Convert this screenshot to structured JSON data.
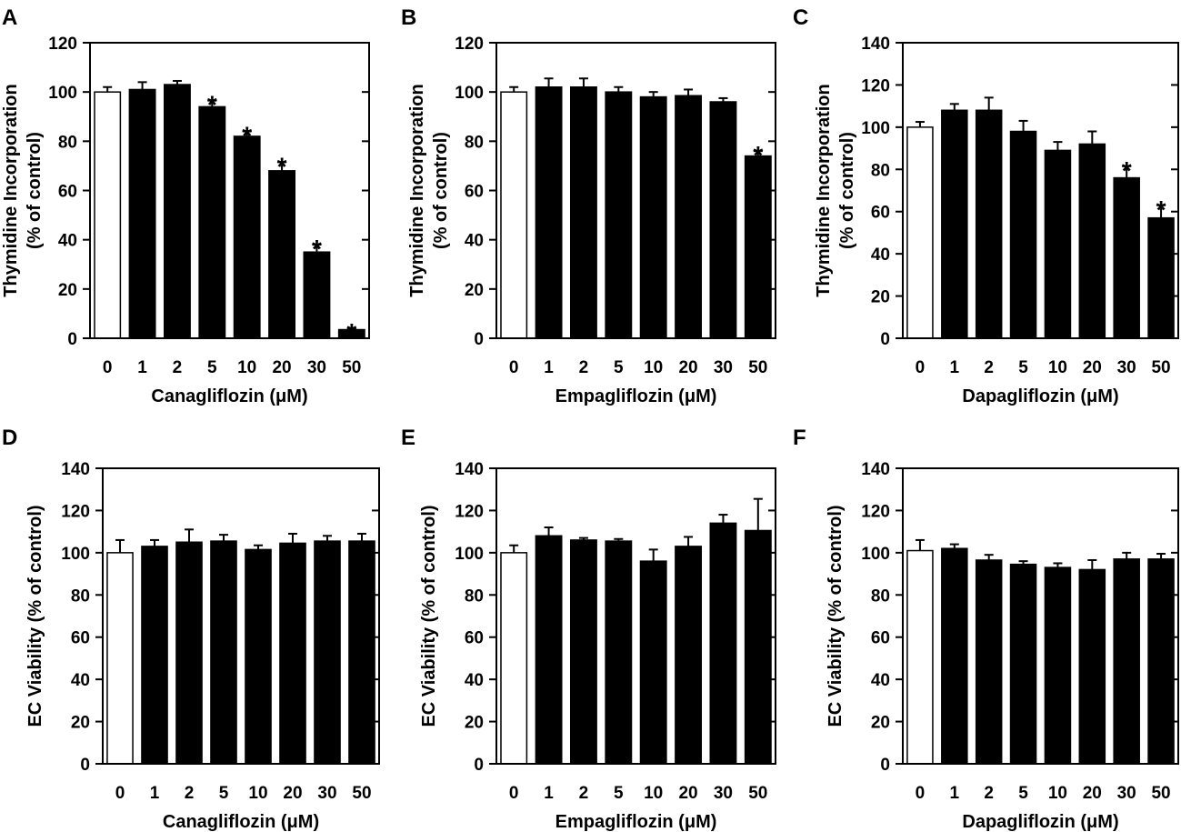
{
  "chart_data": [
    {
      "label": "A",
      "type": "bar",
      "categories": [
        "0",
        "1",
        "2",
        "5",
        "10",
        "20",
        "30",
        "50"
      ],
      "values": [
        100,
        101,
        103,
        94,
        82,
        68,
        35,
        3.5
      ],
      "errors": [
        2,
        3,
        1.5,
        2.5,
        2,
        3.5,
        3,
        0.5
      ],
      "significant": [
        false,
        false,
        false,
        true,
        true,
        true,
        true,
        true
      ],
      "control_fill": "#ffffff",
      "bar_fill": "#000000",
      "xlabel": "Canagliflozin (μM)",
      "ylabel_lines": [
        "Thymidine Incorporation",
        "(% of control)"
      ],
      "ylim": [
        0,
        120
      ],
      "ytick_step": 20,
      "sig_marker": "*"
    },
    {
      "label": "B",
      "type": "bar",
      "categories": [
        "0",
        "1",
        "2",
        "5",
        "10",
        "20",
        "30",
        "50"
      ],
      "values": [
        100,
        102,
        102,
        100,
        98,
        98.5,
        96,
        74
      ],
      "errors": [
        2,
        3.5,
        3.5,
        2,
        2,
        2.5,
        1.5,
        2
      ],
      "significant": [
        false,
        false,
        false,
        false,
        false,
        false,
        false,
        true
      ],
      "control_fill": "#ffffff",
      "bar_fill": "#000000",
      "xlabel": "Empagliflozin (μM)",
      "ylabel_lines": [
        "Thymidine Incorporation",
        "(% of control)"
      ],
      "ylim": [
        0,
        120
      ],
      "ytick_step": 20,
      "sig_marker": "*"
    },
    {
      "label": "C",
      "type": "bar",
      "categories": [
        "0",
        "1",
        "2",
        "5",
        "10",
        "20",
        "30",
        "50"
      ],
      "values": [
        100,
        108,
        108,
        98,
        89,
        92,
        76,
        57
      ],
      "errors": [
        2.5,
        3,
        6,
        5,
        4,
        6,
        5.5,
        6
      ],
      "significant": [
        false,
        false,
        false,
        false,
        false,
        false,
        true,
        true
      ],
      "control_fill": "#ffffff",
      "bar_fill": "#000000",
      "xlabel": "Dapagliflozin (μM)",
      "ylabel_lines": [
        "Thymidine Incorporation",
        "(% of control)"
      ],
      "ylim": [
        0,
        140
      ],
      "ytick_step": 20,
      "sig_marker": "*"
    },
    {
      "label": "D",
      "type": "bar",
      "categories": [
        "0",
        "1",
        "2",
        "5",
        "10",
        "20",
        "30",
        "50"
      ],
      "values": [
        100,
        103,
        105,
        105.5,
        101.5,
        104.5,
        105.5,
        105.5
      ],
      "errors": [
        6,
        3,
        6,
        3,
        2,
        4.5,
        2.5,
        3.5
      ],
      "significant": [
        false,
        false,
        false,
        false,
        false,
        false,
        false,
        false
      ],
      "control_fill": "#ffffff",
      "bar_fill": "#000000",
      "xlabel": "Canagliflozin (μM)",
      "ylabel_lines": [
        "EC Viability (% of control)"
      ],
      "ylim": [
        0,
        140
      ],
      "ytick_step": 20,
      "sig_marker": "*"
    },
    {
      "label": "E",
      "type": "bar",
      "categories": [
        "0",
        "1",
        "2",
        "5",
        "10",
        "20",
        "30",
        "50"
      ],
      "values": [
        100,
        108,
        106,
        105.5,
        96,
        103,
        114,
        110.5
      ],
      "errors": [
        3.5,
        4,
        1,
        1,
        5.5,
        4.5,
        4,
        15
      ],
      "significant": [
        false,
        false,
        false,
        false,
        false,
        false,
        false,
        false
      ],
      "control_fill": "#ffffff",
      "bar_fill": "#000000",
      "xlabel": "Empagliflozin (μM)",
      "ylabel_lines": [
        "EC Viability (% of control)"
      ],
      "ylim": [
        0,
        140
      ],
      "ytick_step": 20,
      "sig_marker": "*"
    },
    {
      "label": "F",
      "type": "bar",
      "categories": [
        "0",
        "1",
        "2",
        "5",
        "10",
        "20",
        "30",
        "50"
      ],
      "values": [
        101,
        102,
        96.5,
        94.5,
        93,
        92,
        97,
        97
      ],
      "errors": [
        5,
        2,
        2.5,
        1.5,
        2,
        4.5,
        3,
        2.5
      ],
      "significant": [
        false,
        false,
        false,
        false,
        false,
        false,
        false,
        false
      ],
      "control_fill": "#ffffff",
      "bar_fill": "#000000",
      "xlabel": "Dapagliflozin (μM)",
      "ylabel_lines": [
        "EC Viability (% of control)"
      ],
      "ylim": [
        0,
        140
      ],
      "ytick_step": 20,
      "sig_marker": "*"
    }
  ]
}
